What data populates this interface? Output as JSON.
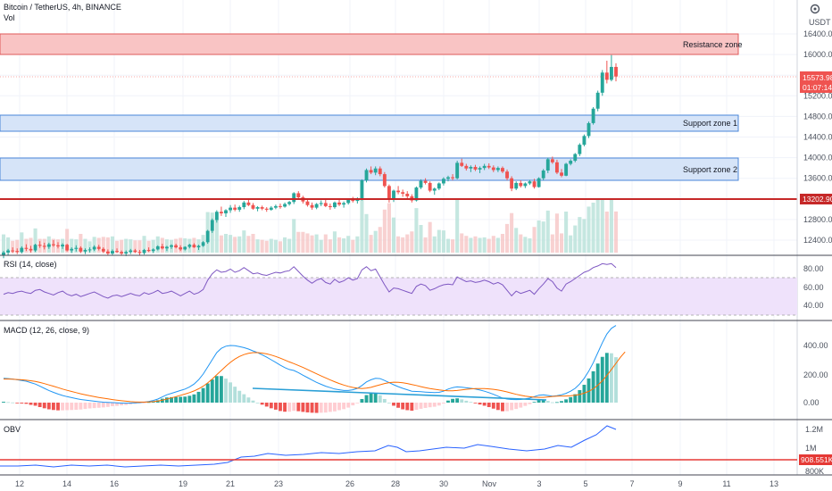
{
  "header": {
    "symbol_line": "Bitcoin / TetherUS, 4h, BINANCE",
    "vol_label": "Vol",
    "currency": "USDT"
  },
  "colors": {
    "up": "#26a69a",
    "down": "#ef5350",
    "resistance_fill": "#f9c4c4",
    "support_fill": "#d6e4f8",
    "rsi_band": "#efe2fb",
    "macd_line": "#2196f3",
    "signal_line": "#ff6d00",
    "obv_line": "#2962ff",
    "trend_line": "#2a9fd6"
  },
  "price_axis": {
    "ticks": [
      "16400.00",
      "16000.00",
      "15600.00",
      "15200.00",
      "14800.00",
      "14400.00",
      "14000.00",
      "13600.00",
      "13200.00",
      "12800.00",
      "12400.00"
    ],
    "last_price_label": "15573.98",
    "countdown_label": "01:07:14",
    "level_label": "13202.90"
  },
  "zones": {
    "resistance": "Resistance zone",
    "support1": "Support zone 1",
    "support2": "Support zone 2"
  },
  "rsi": {
    "title": "RSI (14, close)",
    "ticks": [
      "80.00",
      "60.00",
      "40.00"
    ]
  },
  "macd": {
    "title": "MACD (12, 26, close, 9)",
    "ticks": [
      "400.00",
      "200.00",
      "0.00"
    ]
  },
  "obv": {
    "title": "OBV",
    "ticks": [
      "1.2M",
      "1M",
      "800K"
    ],
    "level_label": "908.551K"
  },
  "time_axis": {
    "labels": [
      "12",
      "14",
      "16",
      "19",
      "21",
      "23",
      "26",
      "28",
      "30",
      "Nov",
      "3",
      "5",
      "7",
      "9",
      "11",
      "13"
    ]
  },
  "chart_data": {
    "type": "candlestick",
    "price": {
      "ohlc": [
        [
          12100,
          12190,
          12050,
          12160
        ],
        [
          12160,
          12230,
          12110,
          12200
        ],
        [
          12200,
          12260,
          12150,
          12190
        ],
        [
          12190,
          12240,
          12130,
          12170
        ],
        [
          12170,
          12280,
          12140,
          12250
        ],
        [
          12250,
          12320,
          12190,
          12230
        ],
        [
          12230,
          12290,
          12160,
          12200
        ],
        [
          12200,
          12330,
          12170,
          12310
        ],
        [
          12310,
          12380,
          12250,
          12290
        ],
        [
          12290,
          12350,
          12220,
          12270
        ],
        [
          12270,
          12350,
          12230,
          12320
        ],
        [
          12320,
          12400,
          12270,
          12300
        ],
        [
          12300,
          12360,
          12240,
          12280
        ],
        [
          12280,
          12340,
          12230,
          12310
        ],
        [
          12310,
          12330,
          12180,
          12200
        ],
        [
          12200,
          12260,
          12150,
          12230
        ],
        [
          12230,
          12300,
          12180,
          12250
        ],
        [
          12250,
          12280,
          12150,
          12180
        ],
        [
          12180,
          12240,
          12130,
          12210
        ],
        [
          12210,
          12260,
          12160,
          12220
        ],
        [
          12220,
          12300,
          12190,
          12270
        ],
        [
          12270,
          12310,
          12200,
          12230
        ],
        [
          12230,
          12260,
          12150,
          12180
        ],
        [
          12180,
          12220,
          12100,
          12140
        ],
        [
          12140,
          12220,
          12100,
          12190
        ],
        [
          12190,
          12240,
          12150,
          12170
        ],
        [
          12170,
          12200,
          12110,
          12140
        ],
        [
          12140,
          12200,
          12090,
          12170
        ],
        [
          12170,
          12230,
          12130,
          12200
        ],
        [
          12200,
          12230,
          12150,
          12170
        ],
        [
          12170,
          12210,
          12110,
          12150
        ],
        [
          12150,
          12230,
          12120,
          12210
        ],
        [
          12210,
          12260,
          12170,
          12190
        ],
        [
          12190,
          12240,
          12150,
          12220
        ],
        [
          12220,
          12300,
          12200,
          12280
        ],
        [
          12280,
          12330,
          12220,
          12240
        ],
        [
          12240,
          12290,
          12190,
          12270
        ],
        [
          12270,
          12320,
          12230,
          12300
        ],
        [
          12300,
          12330,
          12240,
          12260
        ],
        [
          12260,
          12300,
          12190,
          12220
        ],
        [
          12220,
          12280,
          12200,
          12270
        ],
        [
          12270,
          12330,
          12240,
          12310
        ],
        [
          12310,
          12340,
          12250,
          12260
        ],
        [
          12260,
          12310,
          12210,
          12290
        ],
        [
          12290,
          12380,
          12270,
          12360
        ],
        [
          12360,
          12600,
          12330,
          12580
        ],
        [
          12580,
          12820,
          12540,
          12790
        ],
        [
          12790,
          12980,
          12740,
          12950
        ],
        [
          12950,
          13050,
          12870,
          12920
        ],
        [
          12920,
          13000,
          12850,
          12980
        ],
        [
          12980,
          13080,
          12930,
          13030
        ],
        [
          13030,
          13090,
          12960,
          12990
        ],
        [
          12990,
          13070,
          12950,
          13040
        ],
        [
          13040,
          13160,
          13000,
          13130
        ],
        [
          13130,
          13190,
          13060,
          13080
        ],
        [
          13080,
          13120,
          12990,
          13010
        ],
        [
          13010,
          13060,
          12960,
          13040
        ],
        [
          13040,
          13070,
          12980,
          13010
        ],
        [
          13010,
          13040,
          12950,
          12990
        ],
        [
          12990,
          13060,
          12970,
          13030
        ],
        [
          13030,
          13090,
          13000,
          13060
        ],
        [
          13060,
          13110,
          13010,
          13050
        ],
        [
          13050,
          13130,
          13030,
          13100
        ],
        [
          13100,
          13160,
          13070,
          13140
        ],
        [
          13140,
          13330,
          13100,
          13310
        ],
        [
          13310,
          13350,
          13200,
          13230
        ],
        [
          13230,
          13260,
          13110,
          13150
        ],
        [
          13150,
          13190,
          13050,
          13080
        ],
        [
          13080,
          13130,
          12990,
          13030
        ],
        [
          13030,
          13120,
          13000,
          13100
        ],
        [
          13100,
          13170,
          13060,
          13120
        ],
        [
          13120,
          13180,
          13040,
          13060
        ],
        [
          13060,
          13110,
          12990,
          13040
        ],
        [
          13040,
          13150,
          13010,
          13130
        ],
        [
          13130,
          13180,
          13060,
          13090
        ],
        [
          13090,
          13150,
          13030,
          13120
        ],
        [
          13120,
          13200,
          13090,
          13180
        ],
        [
          13180,
          13240,
          13130,
          13160
        ],
        [
          13160,
          13230,
          13110,
          13210
        ],
        [
          13210,
          13580,
          13170,
          13560
        ],
        [
          13560,
          13790,
          13520,
          13760
        ],
        [
          13760,
          13830,
          13680,
          13710
        ],
        [
          13710,
          13830,
          13660,
          13790
        ],
        [
          13790,
          13830,
          13640,
          13680
        ],
        [
          13680,
          13720,
          13420,
          13450
        ],
        [
          13450,
          13480,
          13130,
          13180
        ],
        [
          13180,
          13380,
          13140,
          13360
        ],
        [
          13360,
          13450,
          13290,
          13330
        ],
        [
          13330,
          13380,
          13240,
          13300
        ],
        [
          13300,
          13350,
          13190,
          13250
        ],
        [
          13250,
          13290,
          13130,
          13170
        ],
        [
          13170,
          13440,
          13150,
          13420
        ],
        [
          13420,
          13580,
          13390,
          13550
        ],
        [
          13550,
          13600,
          13480,
          13510
        ],
        [
          13510,
          13540,
          13330,
          13360
        ],
        [
          13360,
          13420,
          13280,
          13400
        ],
        [
          13400,
          13520,
          13370,
          13500
        ],
        [
          13500,
          13620,
          13460,
          13590
        ],
        [
          13590,
          13650,
          13540,
          13620
        ],
        [
          13620,
          13680,
          13560,
          13600
        ],
        [
          13600,
          13940,
          13580,
          13900
        ],
        [
          13900,
          13980,
          13820,
          13840
        ],
        [
          13840,
          13880,
          13750,
          13790
        ],
        [
          13790,
          13850,
          13720,
          13820
        ],
        [
          13820,
          13860,
          13740,
          13770
        ],
        [
          13770,
          13830,
          13700,
          13800
        ],
        [
          13800,
          13880,
          13760,
          13840
        ],
        [
          13840,
          13890,
          13780,
          13810
        ],
        [
          13810,
          13850,
          13720,
          13760
        ],
        [
          13760,
          13830,
          13720,
          13800
        ],
        [
          13800,
          13830,
          13700,
          13730
        ],
        [
          13730,
          13770,
          13560,
          13600
        ],
        [
          13600,
          13640,
          13350,
          13400
        ],
        [
          13400,
          13540,
          13370,
          13510
        ],
        [
          13510,
          13560,
          13420,
          13450
        ],
        [
          13450,
          13520,
          13410,
          13500
        ],
        [
          13500,
          13570,
          13470,
          13540
        ],
        [
          13540,
          13590,
          13400,
          13430
        ],
        [
          13430,
          13620,
          13420,
          13600
        ],
        [
          13600,
          13780,
          13560,
          13750
        ],
        [
          13750,
          14000,
          13700,
          13970
        ],
        [
          13970,
          14020,
          13880,
          13910
        ],
        [
          13910,
          13960,
          13680,
          13710
        ],
        [
          13710,
          13780,
          13620,
          13650
        ],
        [
          13650,
          13900,
          13640,
          13880
        ],
        [
          13880,
          13970,
          13850,
          13940
        ],
        [
          13940,
          14090,
          13910,
          14070
        ],
        [
          14070,
          14280,
          14030,
          14250
        ],
        [
          14250,
          14450,
          14220,
          14420
        ],
        [
          14420,
          14700,
          14380,
          14670
        ],
        [
          14670,
          14980,
          14640,
          14950
        ],
        [
          14950,
          15300,
          14900,
          15260
        ],
        [
          15260,
          15700,
          15200,
          15650
        ],
        [
          15650,
          15880,
          15440,
          15510
        ],
        [
          15510,
          15990,
          15480,
          15760
        ],
        [
          15760,
          15830,
          15480,
          15574
        ]
      ]
    },
    "zones": [
      {
        "name": "Resistance zone",
        "low": 16060,
        "high": 16470
      },
      {
        "name": "Support zone 1",
        "low": 14500,
        "high": 14840
      },
      {
        "name": "Support zone 2",
        "low": 13560,
        "high": 14020
      }
    ],
    "levels": [
      13202.9
    ],
    "last_price": 15573.98,
    "rsi_levels": [
      70,
      30
    ],
    "rsi_range": [
      20,
      95
    ],
    "rsi": [
      50,
      52,
      51,
      53,
      54,
      52,
      51,
      55,
      56,
      53,
      51,
      49,
      52,
      54,
      50,
      48,
      50,
      47,
      49,
      51,
      53,
      50,
      47,
      45,
      48,
      49,
      47,
      49,
      51,
      49,
      48,
      52,
      50,
      52,
      55,
      51,
      52,
      54,
      51,
      48,
      51,
      54,
      50,
      52,
      56,
      68,
      76,
      81,
      78,
      79,
      82,
      78,
      80,
      84,
      80,
      76,
      77,
      75,
      74,
      76,
      78,
      77,
      79,
      80,
      85,
      79,
      73,
      68,
      64,
      68,
      70,
      65,
      63,
      69,
      65,
      67,
      71,
      68,
      70,
      81,
      85,
      80,
      82,
      72,
      62,
      53,
      58,
      57,
      55,
      53,
      51,
      60,
      63,
      61,
      55,
      57,
      60,
      62,
      63,
      62,
      72,
      69,
      66,
      67,
      65,
      66,
      68,
      66,
      63,
      65,
      62,
      55,
      48,
      54,
      51,
      53,
      55,
      50,
      57,
      63,
      70,
      66,
      58,
      54,
      63,
      66,
      70,
      74,
      78,
      80,
      84,
      86,
      89,
      88,
      89,
      84
    ],
    "macd_range": [
      -80,
      600
    ],
    "macd": [
      170,
      168,
      165,
      160,
      155,
      150,
      140,
      130,
      115,
      100,
      85,
      72,
      60,
      50,
      42,
      35,
      28,
      22,
      18,
      14,
      10,
      6,
      3,
      1,
      0,
      -2,
      -3,
      -4,
      -3,
      -2,
      0,
      3,
      8,
      15,
      25,
      40,
      55,
      65,
      75,
      85,
      95,
      110,
      130,
      160,
      200,
      250,
      300,
      350,
      380,
      395,
      400,
      398,
      392,
      385,
      375,
      362,
      350,
      335,
      318,
      300,
      282,
      262,
      245,
      232,
      225,
      210,
      192,
      175,
      158,
      142,
      128,
      115,
      105,
      95,
      90,
      85,
      85,
      90,
      100,
      120,
      145,
      160,
      170,
      168,
      155,
      140,
      125,
      112,
      100,
      90,
      80,
      78,
      76,
      74,
      72,
      70,
      72,
      80,
      95,
      105,
      110,
      108,
      104,
      100,
      95,
      88,
      80,
      70,
      58,
      45,
      32,
      25,
      22,
      21,
      22,
      26,
      32,
      42,
      52,
      55,
      50,
      45,
      48,
      55,
      65,
      80,
      100,
      130,
      170,
      220,
      280,
      350,
      420,
      480,
      520,
      540
    ],
    "signal": [
      165,
      165,
      164,
      162,
      160,
      157,
      153,
      148,
      141,
      133,
      124,
      115,
      105,
      95,
      86,
      78,
      70,
      62,
      55,
      48,
      42,
      36,
      31,
      26,
      21,
      17,
      13,
      10,
      7,
      5,
      4,
      4,
      5,
      7,
      11,
      17,
      25,
      33,
      42,
      51,
      60,
      70,
      82,
      97,
      115,
      138,
      165,
      195,
      225,
      255,
      282,
      305,
      323,
      336,
      345,
      350,
      350,
      347,
      341,
      333,
      323,
      311,
      298,
      285,
      273,
      260,
      246,
      232,
      217,
      202,
      187,
      173,
      159,
      146,
      134,
      123,
      114,
      106,
      101,
      99,
      101,
      107,
      116,
      125,
      134,
      140,
      143,
      142,
      139,
      134,
      127,
      120,
      112,
      105,
      99,
      94,
      89,
      85,
      83,
      83,
      85,
      89,
      93,
      96,
      98,
      99,
      98,
      96,
      93,
      88,
      82,
      75,
      66,
      58,
      51,
      45,
      41,
      38,
      37,
      37,
      40,
      43,
      45,
      46,
      46,
      48,
      51,
      57,
      66,
      79,
      97,
      122,
      153,
      190,
      232,
      275,
      318,
      355
    ]
  }
}
